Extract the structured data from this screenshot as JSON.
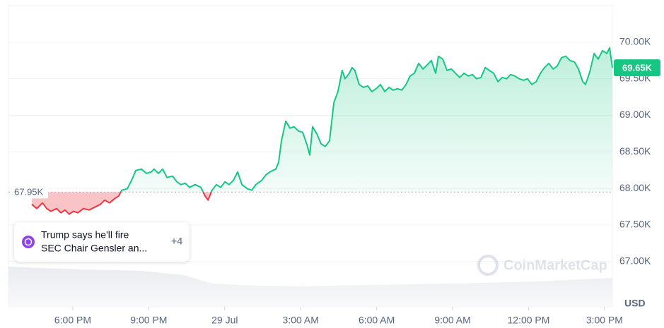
{
  "chart_data": {
    "type": "line",
    "unit": "USD",
    "watermark": "CoinMarketCap",
    "reference": {
      "value": 67950,
      "label": "67.95K"
    },
    "current": {
      "value": 69650,
      "label": "69.65K"
    },
    "above_color": "#16c784",
    "below_color": "#ea3943",
    "x": [
      16.38,
      16.58,
      16.8,
      16.97,
      17.13,
      17.36,
      17.53,
      17.69,
      17.86,
      18.03,
      18.2,
      18.42,
      18.64,
      18.87,
      19.09,
      19.26,
      19.45,
      19.65,
      19.82,
      19.93,
      20.15,
      20.32,
      20.49,
      20.71,
      20.91,
      21.1,
      21.21,
      21.38,
      21.55,
      21.72,
      21.94,
      22.11,
      22.27,
      22.44,
      22.61,
      22.83,
      23.06,
      23.22,
      23.34,
      23.5,
      23.67,
      23.84,
      24.01,
      24.17,
      24.34,
      24.51,
      24.68,
      24.9,
      25.07,
      25.23,
      25.46,
      25.63,
      25.79,
      26.02,
      26.13,
      26.24,
      26.41,
      26.58,
      26.74,
      26.91,
      27.08,
      27.25,
      27.36,
      27.47,
      27.64,
      27.8,
      27.97,
      28.14,
      28.31,
      28.47,
      28.64,
      28.75,
      28.92,
      29.03,
      29.14,
      29.31,
      29.48,
      29.65,
      29.81,
      29.98,
      30.15,
      30.32,
      30.49,
      30.65,
      30.82,
      30.99,
      31.16,
      31.32,
      31.49,
      31.66,
      31.83,
      32.0,
      32.16,
      32.33,
      32.44,
      32.61,
      32.78,
      32.95,
      33.11,
      33.28,
      33.45,
      33.62,
      33.78,
      33.95,
      34.12,
      34.29,
      34.45,
      34.62,
      34.79,
      34.96,
      35.13,
      35.29,
      35.46,
      35.63,
      35.8,
      35.96,
      36.13,
      36.3,
      36.47,
      36.63,
      36.8,
      36.97,
      37.13,
      37.3,
      37.47,
      37.64,
      37.81,
      37.97,
      38.14,
      38.25,
      38.42,
      38.59,
      38.75,
      38.92,
      39.09,
      39.2,
      39.31
    ],
    "values": [
      67782,
      67724,
      67801,
      67724,
      67686,
      67724,
      67666,
      67705,
      67647,
      67686,
      67666,
      67724,
      67705,
      67743,
      67782,
      67840,
      67801,
      67859,
      67898,
      67975,
      67994,
      68110,
      68245,
      68264,
      68206,
      68226,
      68264,
      68206,
      68264,
      68149,
      68168,
      68091,
      68052,
      68071,
      68014,
      68052,
      68014,
      67898,
      67840,
      67975,
      68052,
      68014,
      68091,
      68052,
      68110,
      68226,
      68052,
      67994,
      67975,
      68052,
      68110,
      68187,
      68226,
      68264,
      68361,
      68650,
      68920,
      68824,
      68843,
      68785,
      68766,
      68592,
      68457,
      68843,
      68746,
      68611,
      68573,
      68650,
      69171,
      69325,
      69614,
      69499,
      69576,
      69653,
      69614,
      69421,
      69383,
      69402,
      69325,
      69364,
      69421,
      69325,
      69383,
      69344,
      69364,
      69344,
      69421,
      69537,
      69576,
      69711,
      69634,
      69691,
      69749,
      69576,
      69807,
      69769,
      69614,
      69634,
      69576,
      69518,
      69576,
      69537,
      69557,
      69499,
      69518,
      69653,
      69614,
      69576,
      69460,
      69518,
      69499,
      69557,
      69537,
      69499,
      69479,
      69499,
      69421,
      69460,
      69576,
      69653,
      69711,
      69634,
      69672,
      69788,
      69807,
      69749,
      69730,
      69634,
      69460,
      69421,
      69595,
      69846,
      69769,
      69884,
      69846,
      69923,
      69650
    ],
    "xlim": [
      15.46,
      39.31
    ],
    "ylim": [
      66380,
      70500
    ],
    "xticks": [
      {
        "value": 18,
        "label": "6:00 PM"
      },
      {
        "value": 21,
        "label": "9:00 PM"
      },
      {
        "value": 24,
        "label": "29 Jul"
      },
      {
        "value": 27,
        "label": "3:00 AM"
      },
      {
        "value": 30,
        "label": "6:00 AM"
      },
      {
        "value": 33,
        "label": "9:00 AM"
      },
      {
        "value": 36,
        "label": "12:00 PM"
      },
      {
        "value": 39,
        "label": "3:00 PM"
      }
    ],
    "yticks": [
      {
        "value": 67000,
        "label": "67.00K"
      },
      {
        "value": 67500,
        "label": "67.50K"
      },
      {
        "value": 68000,
        "label": "68.00K"
      },
      {
        "value": 68500,
        "label": "68.50K"
      },
      {
        "value": 69000,
        "label": "69.00K"
      },
      {
        "value": 69500,
        "label": "69.50K"
      },
      {
        "value": 70000,
        "label": "70.00K"
      }
    ],
    "grid": true,
    "news": {
      "lines": [
        "Trump says he'll fire",
        "SEC Chair Gensler an..."
      ],
      "count": "+4"
    }
  }
}
